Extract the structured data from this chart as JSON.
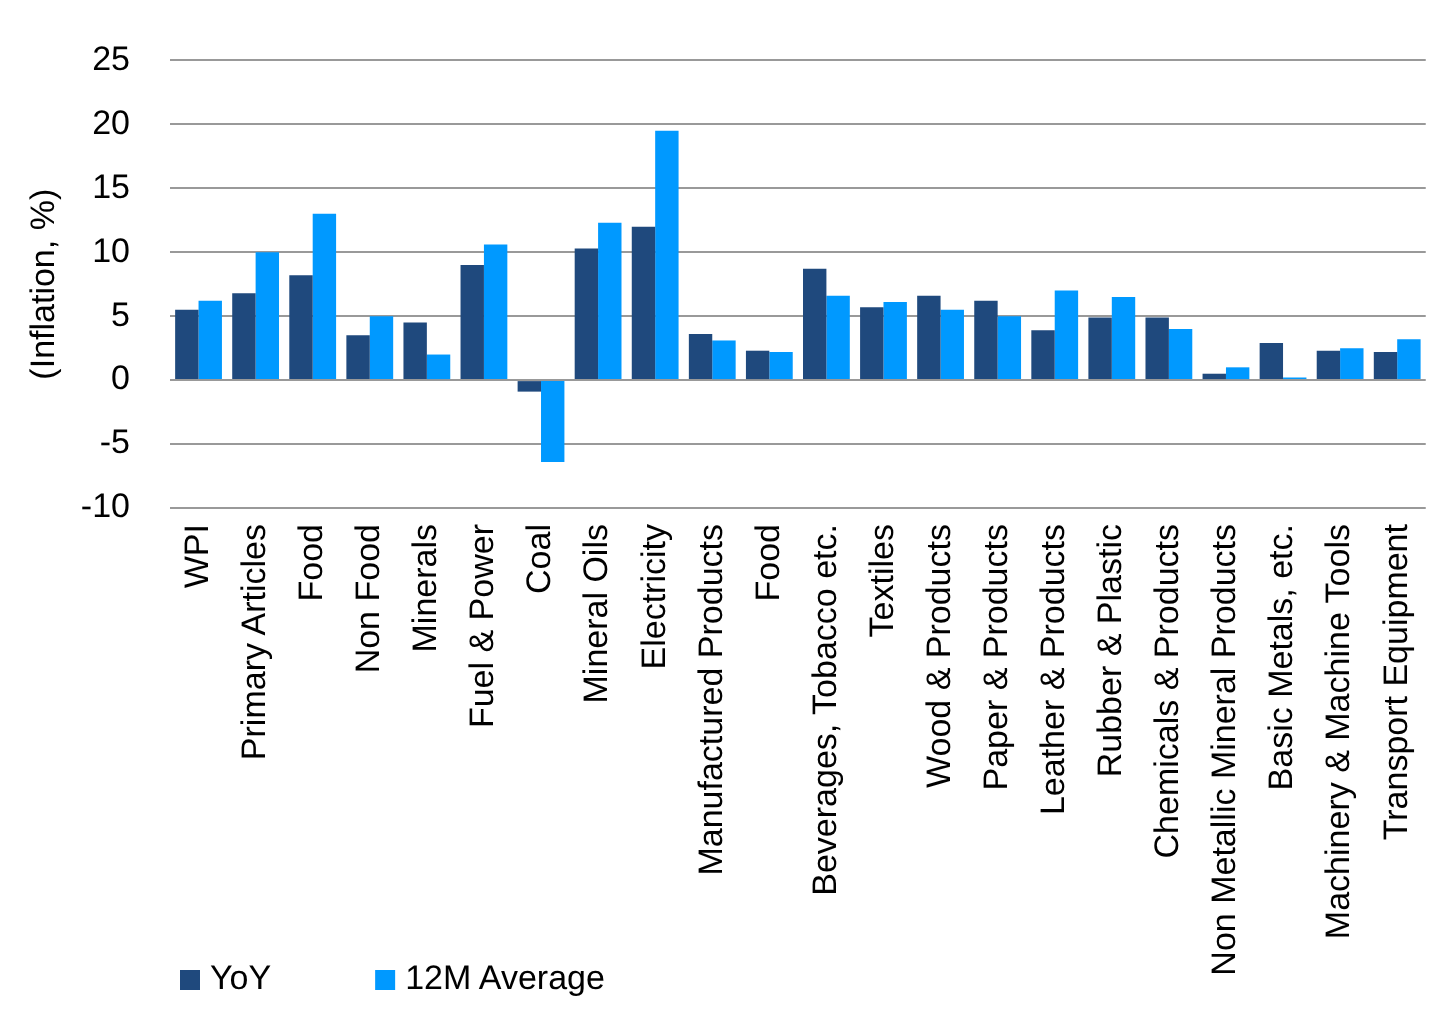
{
  "chart_data": {
    "type": "bar",
    "ylabel": "(Inflation, %)",
    "categories": [
      "WPI",
      "Primary Articles",
      "Food",
      "Non Food",
      "Minerals",
      "Fuel & Power",
      "Coal",
      "Mineral Oils",
      "Electricity",
      "Manufactured Products",
      "Food",
      "Beverages, Tobacco etc.",
      "Textiles",
      "Wood & Products",
      "Paper & Products",
      "Leather & Products",
      "Rubber & Plastic",
      "Chemicals & Products",
      "Non Metallic Mineral Products",
      "Basic Metals, etc.",
      "Machinery & Machine Tools",
      "Transport Equipment"
    ],
    "series": [
      {
        "name": "YoY",
        "color": "#1f497d",
        "values": [
          5.5,
          6.8,
          8.2,
          3.5,
          4.5,
          9.0,
          -0.9,
          10.3,
          12.0,
          3.6,
          2.3,
          8.7,
          5.7,
          6.6,
          6.2,
          3.9,
          4.9,
          4.9,
          0.5,
          2.9,
          2.3,
          2.2
        ]
      },
      {
        "name": "12M Average",
        "color": "#0099ff",
        "values": [
          6.2,
          10.0,
          13.0,
          5.0,
          2.0,
          10.6,
          -6.4,
          12.3,
          19.5,
          3.1,
          2.2,
          6.6,
          6.1,
          5.5,
          5.0,
          7.0,
          6.5,
          4.0,
          1.0,
          0.2,
          2.5,
          3.2
        ]
      }
    ],
    "ylim": [
      -10,
      25
    ],
    "yticks": [
      -10,
      -5,
      0,
      5,
      10,
      15,
      20,
      25
    ],
    "grid": "y",
    "legend": "bottom left"
  }
}
